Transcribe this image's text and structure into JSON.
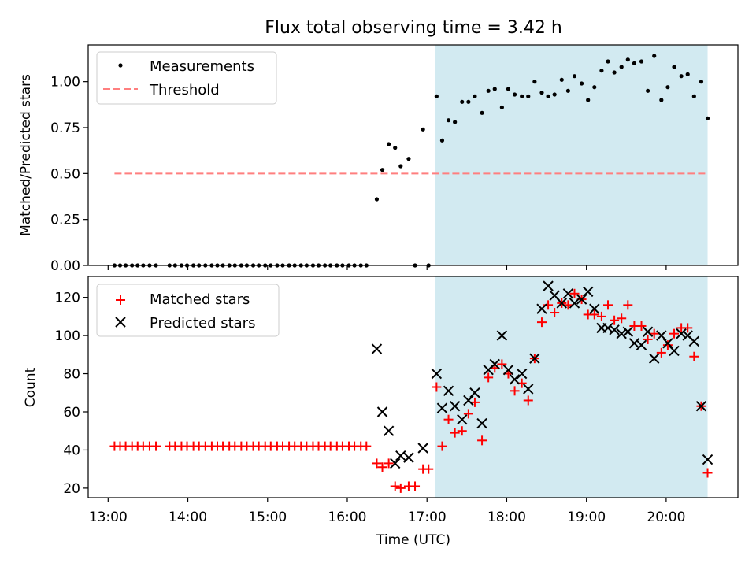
{
  "title": "Flux total observing time = 3.42 h",
  "xlabel": "Time (UTC)",
  "colors": {
    "shade": "#add8e6",
    "threshold": "#ff7f7f",
    "matched": "#ff0000",
    "predicted": "#000000",
    "measurement": "#000000"
  },
  "chart_data": [
    {
      "type": "scatter",
      "title": "Flux total observing time = 3.42 h",
      "ylabel": "Matched/Predicted stars",
      "xlabel": "",
      "xlim": [
        12.75,
        20.9
      ],
      "ylim": [
        0,
        1.2
      ],
      "yticks": [
        0.0,
        0.25,
        0.5,
        0.75,
        1.0
      ],
      "ytick_labels": [
        "0.00",
        "0.25",
        "0.50",
        "0.75",
        "1.00"
      ],
      "shaded_region": [
        17.1,
        20.52
      ],
      "legend": {
        "position": "top-left",
        "entries": [
          "Measurements",
          "Threshold"
        ]
      },
      "threshold": {
        "name": "Threshold",
        "y": 0.5,
        "x": [
          13.08,
          20.52
        ]
      },
      "series": [
        {
          "name": "Measurements",
          "x": [
            13.08,
            13.15,
            13.22,
            13.3,
            13.37,
            13.44,
            13.52,
            13.6,
            13.77,
            13.84,
            13.92,
            13.99,
            14.07,
            14.14,
            14.22,
            14.3,
            14.37,
            14.44,
            14.52,
            14.59,
            14.67,
            14.74,
            14.82,
            14.89,
            14.97,
            15.04,
            15.12,
            15.19,
            15.27,
            15.34,
            15.42,
            15.49,
            15.57,
            15.64,
            15.72,
            15.79,
            15.87,
            15.94,
            16.02,
            16.09,
            16.17,
            16.24,
            16.37,
            16.44,
            16.52,
            16.6,
            16.67,
            16.77,
            16.85,
            16.95,
            17.02,
            17.12,
            17.19,
            17.27,
            17.35,
            17.44,
            17.52,
            17.6,
            17.69,
            17.77,
            17.85,
            17.94,
            18.02,
            18.1,
            18.19,
            18.27,
            18.35,
            18.44,
            18.52,
            18.6,
            18.69,
            18.77,
            18.85,
            18.94,
            19.02,
            19.1,
            19.19,
            19.27,
            19.35,
            19.44,
            19.52,
            19.6,
            19.69,
            19.77,
            19.85,
            19.94,
            20.02,
            20.1,
            20.19,
            20.27,
            20.35,
            20.44,
            20.52
          ],
          "values": [
            0,
            0,
            0,
            0,
            0,
            0,
            0,
            0,
            0,
            0,
            0,
            0,
            0,
            0,
            0,
            0,
            0,
            0,
            0,
            0,
            0,
            0,
            0,
            0,
            0,
            0,
            0,
            0,
            0,
            0,
            0,
            0,
            0,
            0,
            0,
            0,
            0,
            0,
            0,
            0,
            0,
            0,
            0.36,
            0.52,
            0.66,
            0.64,
            0.54,
            0.58,
            0,
            0.74,
            0,
            0.92,
            0.68,
            0.79,
            0.78,
            0.89,
            0.89,
            0.92,
            0.83,
            0.95,
            0.96,
            0.86,
            0.96,
            0.93,
            0.92,
            0.92,
            1.0,
            0.94,
            0.92,
            0.93,
            1.01,
            0.95,
            1.03,
            0.99,
            0.9,
            0.97,
            1.06,
            1.11,
            1.05,
            1.08,
            1.12,
            1.1,
            1.11,
            0.95,
            1.14,
            0.9,
            0.97,
            1.08,
            1.03,
            1.04,
            0.92,
            1.0,
            0.8
          ]
        }
      ]
    },
    {
      "type": "scatter",
      "ylabel": "Count",
      "xlabel": "Time (UTC)",
      "xlim": [
        12.75,
        20.9
      ],
      "ylim": [
        15,
        131
      ],
      "yticks": [
        20,
        40,
        60,
        80,
        100,
        120
      ],
      "ytick_labels": [
        "20",
        "40",
        "60",
        "80",
        "100",
        "120"
      ],
      "xticks": [
        13,
        14,
        15,
        16,
        17,
        18,
        19,
        20
      ],
      "xtick_labels": [
        "13:00",
        "14:00",
        "15:00",
        "16:00",
        "17:00",
        "18:00",
        "19:00",
        "20:00"
      ],
      "shaded_region": [
        17.1,
        20.52
      ],
      "legend": {
        "position": "top-left",
        "entries": [
          "Matched stars",
          "Predicted stars"
        ]
      },
      "series": [
        {
          "name": "Matched stars",
          "x": [
            13.08,
            13.15,
            13.22,
            13.3,
            13.37,
            13.44,
            13.52,
            13.6,
            13.77,
            13.84,
            13.92,
            13.99,
            14.07,
            14.14,
            14.22,
            14.3,
            14.37,
            14.44,
            14.52,
            14.59,
            14.67,
            14.74,
            14.82,
            14.89,
            14.97,
            15.04,
            15.12,
            15.19,
            15.27,
            15.34,
            15.42,
            15.49,
            15.57,
            15.64,
            15.72,
            15.79,
            15.87,
            15.94,
            16.02,
            16.09,
            16.17,
            16.24,
            16.37,
            16.44,
            16.52,
            16.6,
            16.67,
            16.77,
            16.85,
            16.95,
            17.02,
            17.12,
            17.19,
            17.27,
            17.35,
            17.44,
            17.52,
            17.6,
            17.69,
            17.77,
            17.85,
            17.94,
            18.02,
            18.1,
            18.19,
            18.27,
            18.35,
            18.44,
            18.52,
            18.6,
            18.69,
            18.77,
            18.85,
            18.94,
            19.02,
            19.1,
            19.19,
            19.27,
            19.35,
            19.44,
            19.52,
            19.6,
            19.69,
            19.77,
            19.85,
            19.94,
            20.02,
            20.1,
            20.19,
            20.27,
            20.35,
            20.44,
            20.52
          ],
          "values": [
            42,
            42,
            42,
            42,
            42,
            42,
            42,
            42,
            42,
            42,
            42,
            42,
            42,
            42,
            42,
            42,
            42,
            42,
            42,
            42,
            42,
            42,
            42,
            42,
            42,
            42,
            42,
            42,
            42,
            42,
            42,
            42,
            42,
            42,
            42,
            42,
            42,
            42,
            42,
            42,
            42,
            42,
            33,
            31,
            33,
            21,
            20,
            21,
            21,
            30,
            30,
            73,
            42,
            56,
            49,
            50,
            59,
            65,
            45,
            78,
            83,
            85,
            80,
            71,
            75,
            66,
            88,
            107,
            116,
            112,
            117,
            116,
            122,
            119,
            111,
            111,
            110,
            116,
            108,
            109,
            116,
            105,
            105,
            98,
            101,
            91,
            95,
            101,
            104,
            104,
            89,
            63,
            28
          ]
        },
        {
          "name": "Predicted stars",
          "x": [
            16.37,
            16.44,
            16.52,
            16.6,
            16.67,
            16.77,
            16.95,
            17.12,
            17.19,
            17.27,
            17.35,
            17.44,
            17.52,
            17.6,
            17.69,
            17.77,
            17.85,
            17.94,
            18.02,
            18.1,
            18.19,
            18.27,
            18.35,
            18.44,
            18.52,
            18.6,
            18.69,
            18.77,
            18.85,
            18.94,
            19.02,
            19.1,
            19.19,
            19.27,
            19.35,
            19.44,
            19.52,
            19.6,
            19.69,
            19.77,
            19.85,
            19.94,
            20.02,
            20.1,
            20.19,
            20.27,
            20.35,
            20.44,
            20.52
          ],
          "values": [
            93,
            60,
            50,
            33,
            37,
            36,
            41,
            80,
            62,
            71,
            63,
            56,
            66,
            70,
            54,
            82,
            85,
            100,
            82,
            77,
            80,
            72,
            88,
            114,
            126,
            121,
            117,
            122,
            117,
            119,
            123,
            114,
            104,
            104,
            103,
            101,
            102,
            96,
            95,
            102,
            88,
            100,
            96,
            92,
            101,
            100,
            97,
            63,
            35
          ]
        }
      ]
    }
  ]
}
